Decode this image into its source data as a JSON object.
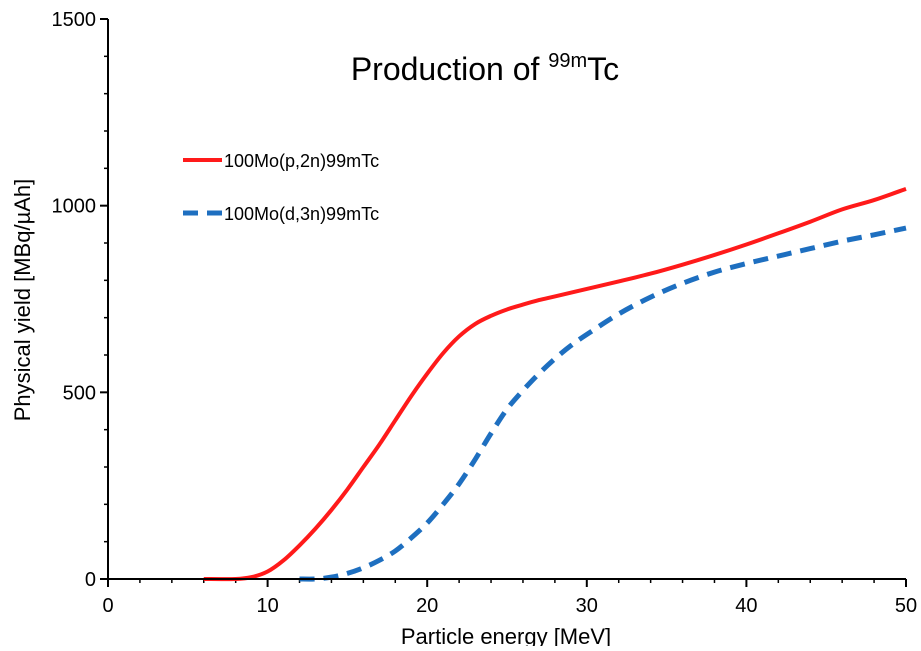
{
  "chart_data": {
    "type": "line",
    "title": {
      "main": "Production of ",
      "superscript": "99m",
      "suffix": "Tc"
    },
    "xlabel": "Particle energy [MeV]",
    "ylabel": "Physical yield  [MBq/µAh]",
    "xlim": [
      0,
      50
    ],
    "ylim": [
      0,
      1500
    ],
    "xticks": [
      0,
      10,
      20,
      30,
      40,
      50
    ],
    "yticks": [
      0,
      500,
      1000,
      1500
    ],
    "x_minor_step": 2,
    "y_minor_step": 100,
    "grid": false,
    "legend_position": "upper-left",
    "series": [
      {
        "name": "100Mo(p,2n)99mTc",
        "color": "#ff1a1a",
        "line_style": "solid",
        "x": [
          6,
          8,
          9,
          10,
          11,
          12,
          13,
          14,
          15,
          16,
          17,
          18,
          19,
          20,
          21,
          22,
          23,
          24,
          25,
          26,
          27,
          28,
          30,
          32,
          34,
          36,
          38,
          40,
          42,
          44,
          46,
          48,
          50
        ],
        "y": [
          0,
          0,
          5,
          20,
          50,
          90,
          135,
          185,
          240,
          300,
          360,
          425,
          490,
          550,
          605,
          650,
          683,
          705,
          722,
          735,
          747,
          757,
          777,
          797,
          818,
          842,
          868,
          896,
          926,
          957,
          990,
          1015,
          1045
        ]
      },
      {
        "name": "100Mo(d,3n)99mTc",
        "color": "#1e6fc0",
        "line_style": "dashed",
        "x": [
          12,
          13,
          14,
          15,
          16,
          17,
          18,
          19,
          20,
          21,
          22,
          23,
          24,
          25,
          26,
          27,
          28,
          29,
          30,
          32,
          34,
          36,
          38,
          40,
          42,
          44,
          46,
          48,
          50
        ],
        "y": [
          0,
          0,
          5,
          15,
          30,
          50,
          75,
          110,
          150,
          200,
          255,
          320,
          390,
          455,
          505,
          550,
          590,
          625,
          655,
          710,
          755,
          792,
          822,
          845,
          865,
          885,
          905,
          922,
          940
        ]
      }
    ]
  }
}
